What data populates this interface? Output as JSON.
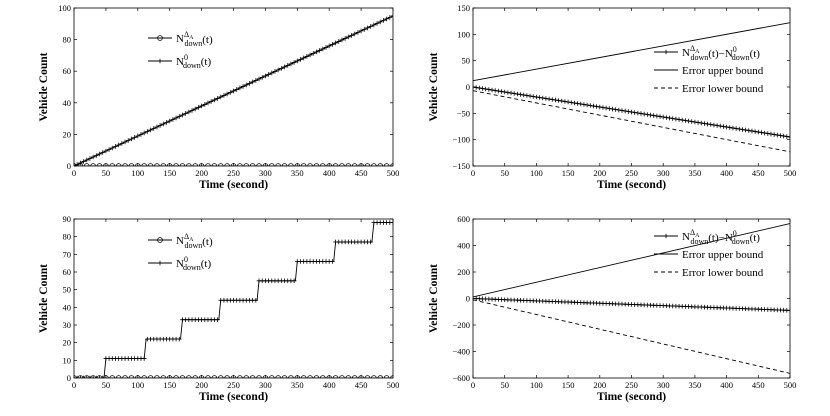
{
  "figure": {
    "background": "#ffffff",
    "ink": "#000000"
  },
  "legend_glyphs": {
    "n_down": "N",
    "down": "down",
    "delta": "Δ",
    "sub_a": "A",
    "zero": "0",
    "t": "(t)",
    "minus": "−"
  },
  "chart_data": [
    {
      "id": "top-left",
      "type": "line",
      "xlabel": "Time (second)",
      "ylabel": "Vehicle Count",
      "xlim": [
        0,
        500
      ],
      "ylim": [
        0,
        100
      ],
      "xticks": [
        0,
        50,
        100,
        150,
        200,
        250,
        300,
        350,
        400,
        450,
        500
      ],
      "yticks": [
        0,
        20,
        40,
        60,
        80,
        100
      ],
      "grid": false,
      "legend_position": "upper-left",
      "series": [
        {
          "name": "N^ΔA_down(t)",
          "marker": "circle",
          "style": "solid",
          "formula": "constant",
          "value": 0,
          "step": 10
        },
        {
          "name": "N^0_down(t)",
          "marker": "plus",
          "style": "solid",
          "formula": "linear",
          "start": 0,
          "end": 95,
          "step": 5
        }
      ]
    },
    {
      "id": "top-right",
      "type": "line",
      "xlabel": "Time (second)",
      "ylabel": "Vehicle Count",
      "xlim": [
        0,
        500
      ],
      "ylim": [
        -150,
        150
      ],
      "xticks": [
        0,
        50,
        100,
        150,
        200,
        250,
        300,
        350,
        400,
        450,
        500
      ],
      "yticks": [
        -150,
        -100,
        -50,
        0,
        50,
        100,
        150
      ],
      "grid": false,
      "legend_position": "upper-right",
      "series": [
        {
          "name": "N^ΔA_down(t)−N^0_down(t)",
          "marker": "plus",
          "style": "solid",
          "formula": "linear",
          "start": 0,
          "end": -95,
          "step": 5
        },
        {
          "name": "Error upper bound",
          "marker": "none",
          "style": "solid",
          "formula": "linear",
          "start": 12,
          "end": 122
        },
        {
          "name": "Error lower bound",
          "marker": "none",
          "style": "dashed",
          "formula": "linear",
          "start": -7,
          "end": -123
        }
      ]
    },
    {
      "id": "bottom-left",
      "type": "line",
      "xlabel": "Time (second)",
      "ylabel": "Vehicle Count",
      "xlim": [
        0,
        500
      ],
      "ylim": [
        0,
        90
      ],
      "xticks": [
        0,
        50,
        100,
        150,
        200,
        250,
        300,
        350,
        400,
        450,
        500
      ],
      "yticks": [
        0,
        10,
        20,
        30,
        40,
        50,
        60,
        70,
        80,
        90
      ],
      "grid": false,
      "legend_position": "upper-left",
      "series": [
        {
          "name": "N^ΔA_down(t)",
          "marker": "circle",
          "style": "solid",
          "formula": "constant",
          "value": 0,
          "step": 10
        },
        {
          "name": "N^0_down(t)",
          "marker": "plus",
          "style": "solid",
          "formula": "staircase",
          "step": 5,
          "steps": [
            [
              0,
              0
            ],
            [
              50,
              11
            ],
            [
              113,
              22
            ],
            [
              170,
              33
            ],
            [
              230,
              44
            ],
            [
              290,
              55
            ],
            [
              350,
              66
            ],
            [
              410,
              77
            ],
            [
              470,
              88
            ]
          ]
        }
      ]
    },
    {
      "id": "bottom-right",
      "type": "line",
      "xlabel": "Time (second)",
      "ylabel": "Vehicle Count",
      "xlim": [
        0,
        500
      ],
      "ylim": [
        -600,
        600
      ],
      "xticks": [
        0,
        50,
        100,
        150,
        200,
        250,
        300,
        350,
        400,
        450,
        500
      ],
      "yticks": [
        -600,
        -400,
        -200,
        0,
        200,
        400,
        600
      ],
      "grid": false,
      "legend_position": "upper-right",
      "series": [
        {
          "name": "N^ΔA_down(t)−N^0_down(t)",
          "marker": "plus",
          "style": "solid",
          "formula": "linear",
          "start": 0,
          "end": -90,
          "step": 5
        },
        {
          "name": "Error upper bound",
          "marker": "none",
          "style": "solid",
          "formula": "linear",
          "start": 12,
          "end": 565
        },
        {
          "name": "Error lower bound",
          "marker": "none",
          "style": "dashed",
          "formula": "linear",
          "start": -10,
          "end": -565
        }
      ]
    }
  ]
}
